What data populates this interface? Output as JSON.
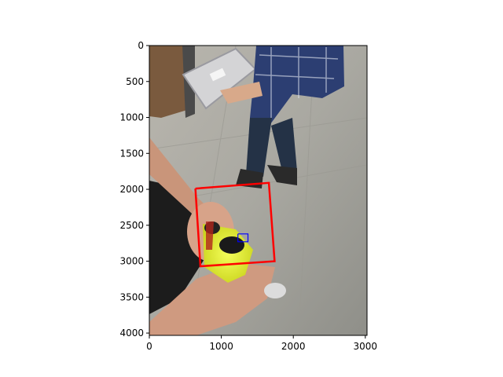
{
  "chart_data": {
    "type": "image",
    "title": "",
    "xlabel": "",
    "ylabel": "",
    "xlim": [
      0,
      3024
    ],
    "ylim": [
      4032,
      0
    ],
    "x_ticks": [
      "0",
      "1000",
      "2000",
      "3000"
    ],
    "y_ticks": [
      "0",
      "500",
      "1000",
      "1500",
      "2000",
      "2500",
      "3000",
      "3500",
      "4000"
    ],
    "annotations": [
      {
        "shape": "polygon",
        "color": "#ff0000",
        "points": [
          [
            640,
            1990
          ],
          [
            1660,
            1910
          ],
          [
            1740,
            3000
          ],
          [
            710,
            3070
          ],
          [
            640,
            1990
          ]
        ]
      },
      {
        "shape": "rect",
        "color": "#0000ff",
        "points": [
          [
            1230,
            2620
          ],
          [
            1370,
            2620
          ],
          [
            1370,
            2730
          ],
          [
            1230,
            2730
          ],
          [
            1230,
            2620
          ]
        ]
      }
    ]
  },
  "photo": {
    "description": "person holding a yellow and black handheld device; another person in plaid shirt carrying a box in background"
  }
}
